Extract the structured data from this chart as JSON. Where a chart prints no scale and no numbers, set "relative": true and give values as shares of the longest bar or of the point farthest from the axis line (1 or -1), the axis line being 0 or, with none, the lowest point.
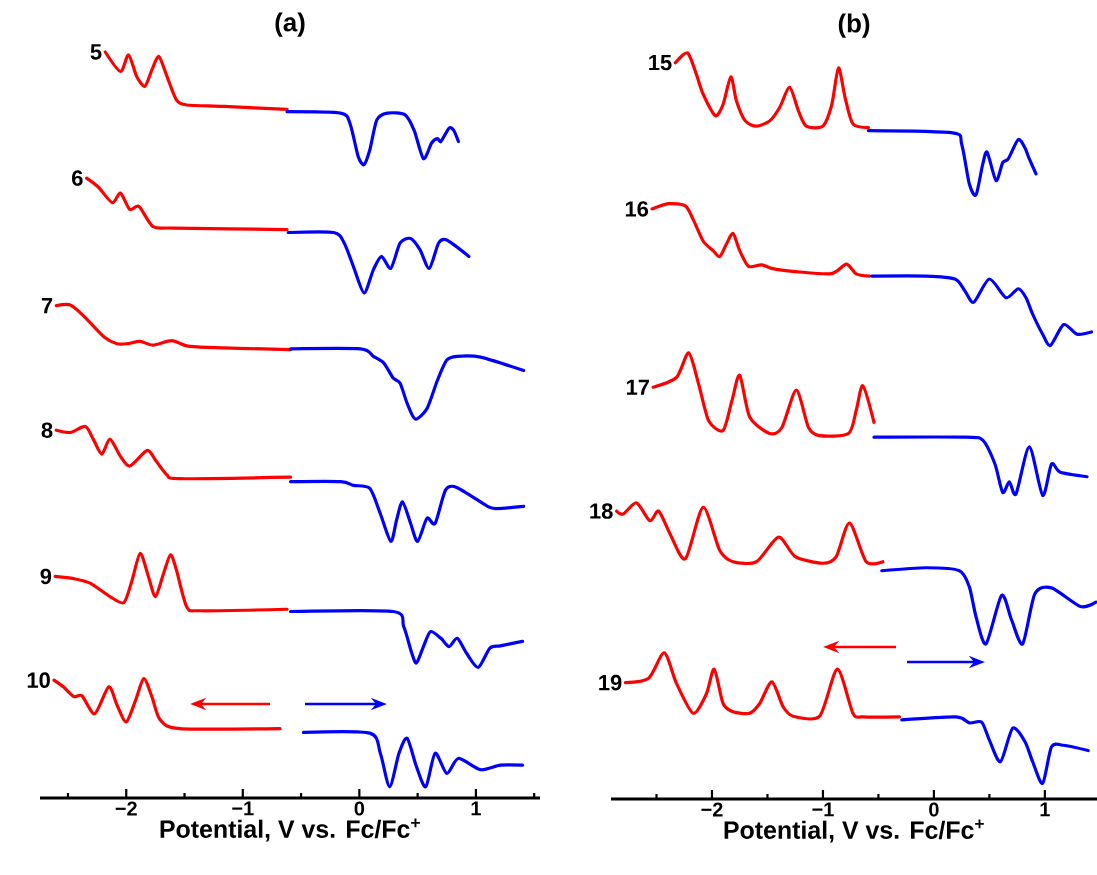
{
  "chart_data": [
    {
      "type": "line",
      "title": "(a)",
      "xlabel": "Potential, V vs. Fc/Fc$^{+}$",
      "relative": true,
      "xlim": [
        -2.74,
        1.55
      ],
      "xticks": [
        {
          "value": -2.5,
          "label": null
        },
        {
          "value": -2,
          "label": "−2"
        },
        {
          "value": -1.5,
          "label": null
        },
        {
          "value": -1,
          "label": "−1"
        },
        {
          "value": -0.5,
          "label": null
        },
        0,
        {
          "value": 0.5,
          "label": null
        },
        1,
        {
          "value": 1.5,
          "label": null
        }
      ],
      "series": [
        {
          "name": "5",
          "color": "#ff0000",
          "x": [
            -2.18,
            -2.05,
            -1.98,
            -1.91,
            -1.84,
            -1.78,
            -1.72,
            -1.65,
            -1.57,
            -1.48,
            -1.16,
            -0.62
          ],
          "values": [
            1.0,
            0.974,
            0.996,
            0.967,
            0.954,
            0.976,
            0.994,
            0.967,
            0.936,
            0.929,
            0.927,
            0.923
          ]
        },
        {
          "color": "#0000ff",
          "x": [
            -0.62,
            -0.16,
            -0.08,
            -0.01,
            0.04,
            0.09,
            0.15,
            0.24,
            0.39,
            0.47,
            0.55,
            0.62,
            0.67,
            0.7,
            0.77,
            0.81,
            0.85
          ],
          "values": [
            0.92,
            0.918,
            0.904,
            0.86,
            0.849,
            0.869,
            0.909,
            0.918,
            0.916,
            0.895,
            0.857,
            0.878,
            0.884,
            0.88,
            0.898,
            0.895,
            0.88
          ]
        },
        {
          "name": "6",
          "color": "#ff0000",
          "x": [
            -2.34,
            -2.24,
            -2.12,
            -2.05,
            -1.97,
            -1.89,
            -1.77,
            -1.59,
            -0.62
          ],
          "values": [
            0.831,
            0.819,
            0.798,
            0.811,
            0.789,
            0.793,
            0.766,
            0.764,
            0.762
          ]
        },
        {
          "color": "#0000ff",
          "x": [
            -0.61,
            -0.22,
            -0.13,
            -0.05,
            0.04,
            0.12,
            0.19,
            0.27,
            0.35,
            0.44,
            0.52,
            0.6,
            0.68,
            0.75,
            0.94
          ],
          "values": [
            0.758,
            0.758,
            0.744,
            0.712,
            0.677,
            0.708,
            0.726,
            0.71,
            0.744,
            0.75,
            0.735,
            0.71,
            0.744,
            0.748,
            0.726
          ]
        },
        {
          "name": "7",
          "color": "#ff0000",
          "x": [
            -2.6,
            -2.48,
            -2.37,
            -2.19,
            -2.08,
            -1.99,
            -1.88,
            -1.77,
            -1.61,
            -1.48,
            -1.31,
            -0.59
          ],
          "values": [
            0.66,
            0.661,
            0.647,
            0.618,
            0.609,
            0.609,
            0.612,
            0.607,
            0.613,
            0.606,
            0.604,
            0.601
          ]
        },
        {
          "color": "#0000ff",
          "x": [
            -0.59,
            0.01,
            0.12,
            0.21,
            0.29,
            0.35,
            0.41,
            0.48,
            0.58,
            0.67,
            0.75,
            0.84,
            1.04,
            1.41
          ],
          "values": [
            0.602,
            0.602,
            0.592,
            0.583,
            0.563,
            0.556,
            0.529,
            0.508,
            0.522,
            0.56,
            0.587,
            0.592,
            0.591,
            0.573
          ]
        },
        {
          "name": "8",
          "color": "#ff0000",
          "x": [
            -2.6,
            -2.48,
            -2.35,
            -2.28,
            -2.21,
            -2.14,
            -2.05,
            -1.97,
            -1.82,
            -1.75,
            -1.65,
            -1.54,
            -0.59
          ],
          "values": [
            0.493,
            0.49,
            0.498,
            0.48,
            0.461,
            0.481,
            0.458,
            0.445,
            0.466,
            0.453,
            0.433,
            0.428,
            0.43
          ]
        },
        {
          "color": "#0000ff",
          "x": [
            -0.59,
            -0.16,
            -0.05,
            0.09,
            0.18,
            0.27,
            0.32,
            0.37,
            0.44,
            0.5,
            0.58,
            0.65,
            0.74,
            0.84,
            1.1,
            1.18,
            1.41
          ],
          "values": [
            0.424,
            0.424,
            0.419,
            0.415,
            0.381,
            0.344,
            0.373,
            0.397,
            0.368,
            0.344,
            0.375,
            0.368,
            0.413,
            0.416,
            0.391,
            0.388,
            0.391
          ]
        },
        {
          "name": "9",
          "color": "#ff0000",
          "x": [
            -2.61,
            -2.45,
            -2.31,
            -2.14,
            -2.02,
            -1.95,
            -1.88,
            -1.81,
            -1.75,
            -1.68,
            -1.62,
            -1.57,
            -1.48,
            -1.36,
            -0.62
          ],
          "values": [
            0.297,
            0.294,
            0.288,
            0.27,
            0.262,
            0.292,
            0.328,
            0.297,
            0.27,
            0.301,
            0.326,
            0.306,
            0.256,
            0.251,
            0.253
          ]
        },
        {
          "color": "#0000ff",
          "x": [
            -0.59,
            0.29,
            0.38,
            0.45,
            0.49,
            0.55,
            0.61,
            0.7,
            0.77,
            0.84,
            0.92,
            1.02,
            1.12,
            1.21,
            1.4
          ],
          "values": [
            0.25,
            0.25,
            0.23,
            0.194,
            0.181,
            0.203,
            0.223,
            0.214,
            0.203,
            0.214,
            0.194,
            0.175,
            0.201,
            0.204,
            0.21
          ]
        },
        {
          "name": "10",
          "color": "#ff0000",
          "x": [
            -2.62,
            -2.54,
            -2.45,
            -2.38,
            -2.27,
            -2.15,
            -2.08,
            -2.0,
            -1.92,
            -1.85,
            -1.78,
            -1.71,
            -1.54,
            -0.68
          ],
          "values": [
            0.158,
            0.149,
            0.136,
            0.137,
            0.113,
            0.149,
            0.125,
            0.102,
            0.131,
            0.16,
            0.136,
            0.105,
            0.093,
            0.093
          ]
        },
        {
          "color": "#0000ff",
          "x": [
            -0.48,
            0.09,
            0.18,
            0.26,
            0.34,
            0.41,
            0.49,
            0.57,
            0.65,
            0.75,
            0.85,
            1.04,
            1.21,
            1.4
          ],
          "values": [
            0.088,
            0.087,
            0.06,
            0.015,
            0.06,
            0.08,
            0.042,
            0.015,
            0.06,
            0.033,
            0.053,
            0.038,
            0.044,
            0.044
          ]
        }
      ]
    },
    {
      "type": "line",
      "title": "(b)",
      "xlabel": "Potential, V vs. Fc/Fc$^{+}$",
      "relative": true,
      "xlim": [
        -2.91,
        1.47
      ],
      "xticks": [
        {
          "value": -2.5,
          "label": null
        },
        {
          "value": -2,
          "label": "−2"
        },
        {
          "value": -1.5,
          "label": null
        },
        {
          "value": -1,
          "label": "−1"
        },
        {
          "value": -0.5,
          "label": null
        },
        0,
        {
          "value": 0.5,
          "label": null
        },
        1
      ],
      "series": [
        {
          "name": "15",
          "color": "#ff0000",
          "x": [
            -2.33,
            -2.22,
            -2.14,
            -2.08,
            -1.97,
            -1.9,
            -1.83,
            -1.78,
            -1.7,
            -1.6,
            -1.48,
            -1.39,
            -1.3,
            -1.22,
            -1.15,
            -1.0,
            -0.92,
            -0.86,
            -0.8,
            -0.73,
            -0.59
          ],
          "values": [
            0.987,
            1.0,
            0.971,
            0.945,
            0.916,
            0.931,
            0.968,
            0.936,
            0.909,
            0.902,
            0.909,
            0.927,
            0.954,
            0.922,
            0.902,
            0.902,
            0.931,
            0.98,
            0.94,
            0.905,
            0.9
          ]
        },
        {
          "color": "#0000ff",
          "x": [
            -0.59,
            0.17,
            0.25,
            0.32,
            0.38,
            0.44,
            0.48,
            0.56,
            0.62,
            0.67,
            0.76,
            0.82,
            0.86,
            0.92
          ],
          "values": [
            0.896,
            0.893,
            0.878,
            0.824,
            0.81,
            0.851,
            0.867,
            0.829,
            0.853,
            0.858,
            0.884,
            0.873,
            0.858,
            0.838
          ]
        },
        {
          "name": "16",
          "color": "#ff0000",
          "x": [
            -2.54,
            -2.39,
            -2.24,
            -2.17,
            -2.08,
            -1.99,
            -1.93,
            -1.87,
            -1.81,
            -1.75,
            -1.67,
            -1.55,
            -1.42,
            -0.94,
            -0.79,
            -0.7,
            -0.58
          ],
          "values": [
            0.791,
            0.798,
            0.795,
            0.777,
            0.748,
            0.735,
            0.727,
            0.744,
            0.758,
            0.735,
            0.714,
            0.716,
            0.71,
            0.704,
            0.717,
            0.704,
            0.701
          ]
        },
        {
          "color": "#0000ff",
          "x": [
            -0.56,
            -0.07,
            0.19,
            0.28,
            0.36,
            0.5,
            0.65,
            0.76,
            0.83,
            0.89,
            0.98,
            1.05,
            1.17,
            1.29,
            1.42
          ],
          "values": [
            0.701,
            0.701,
            0.697,
            0.681,
            0.666,
            0.697,
            0.672,
            0.684,
            0.672,
            0.65,
            0.623,
            0.608,
            0.636,
            0.623,
            0.626
          ]
        },
        {
          "name": "17",
          "color": "#ff0000",
          "x": [
            -2.53,
            -2.32,
            -2.21,
            -2.12,
            -2.03,
            -1.9,
            -1.82,
            -1.75,
            -1.66,
            -1.48,
            -1.37,
            -1.24,
            -1.13,
            -1.03,
            -0.77,
            -0.7,
            -0.64,
            -0.54
          ],
          "values": [
            0.552,
            0.565,
            0.598,
            0.556,
            0.507,
            0.494,
            0.534,
            0.568,
            0.512,
            0.49,
            0.498,
            0.548,
            0.498,
            0.487,
            0.49,
            0.521,
            0.554,
            0.505
          ]
        },
        {
          "color": "#0000ff",
          "x": [
            -0.54,
            0.29,
            0.44,
            0.55,
            0.62,
            0.68,
            0.74,
            0.86,
            0.98,
            1.06,
            1.14,
            1.38
          ],
          "values": [
            0.485,
            0.485,
            0.481,
            0.449,
            0.411,
            0.425,
            0.409,
            0.472,
            0.407,
            0.449,
            0.438,
            0.432
          ]
        },
        {
          "name": "18",
          "color": "#ff0000",
          "x": [
            -2.86,
            -2.8,
            -2.68,
            -2.56,
            -2.48,
            -2.38,
            -2.24,
            -2.08,
            -1.93,
            -1.81,
            -1.6,
            -1.4,
            -1.25,
            -1.0,
            -0.88,
            -0.76,
            -0.61,
            -0.46
          ],
          "values": [
            0.386,
            0.382,
            0.397,
            0.373,
            0.386,
            0.356,
            0.322,
            0.391,
            0.333,
            0.318,
            0.318,
            0.351,
            0.325,
            0.316,
            0.325,
            0.37,
            0.318,
            0.318
          ]
        },
        {
          "color": "#0000ff",
          "x": [
            -0.47,
            -0.07,
            0.23,
            0.32,
            0.38,
            0.47,
            0.61,
            0.7,
            0.8,
            0.91,
            1.06,
            1.32,
            1.46
          ],
          "values": [
            0.306,
            0.31,
            0.306,
            0.284,
            0.244,
            0.208,
            0.273,
            0.24,
            0.208,
            0.275,
            0.283,
            0.258,
            0.264
          ]
        },
        {
          "name": "19",
          "color": "#ff0000",
          "x": [
            -2.78,
            -2.57,
            -2.43,
            -2.32,
            -2.17,
            -2.05,
            -1.98,
            -1.9,
            -1.81,
            -1.66,
            -1.57,
            -1.46,
            -1.36,
            -1.27,
            -1.03,
            -0.87,
            -0.73,
            -0.64,
            -0.31
          ],
          "values": [
            0.156,
            0.162,
            0.196,
            0.155,
            0.115,
            0.141,
            0.174,
            0.128,
            0.117,
            0.115,
            0.128,
            0.157,
            0.124,
            0.111,
            0.111,
            0.174,
            0.115,
            0.11,
            0.11
          ]
        },
        {
          "color": "#0000ff",
          "x": [
            -0.29,
            0.2,
            0.32,
            0.43,
            0.5,
            0.6,
            0.71,
            0.82,
            0.89,
            0.98,
            1.06,
            1.17,
            1.39
          ],
          "values": [
            0.106,
            0.11,
            0.102,
            0.103,
            0.079,
            0.05,
            0.095,
            0.077,
            0.05,
            0.021,
            0.07,
            0.072,
            0.065
          ]
        }
      ]
    }
  ]
}
